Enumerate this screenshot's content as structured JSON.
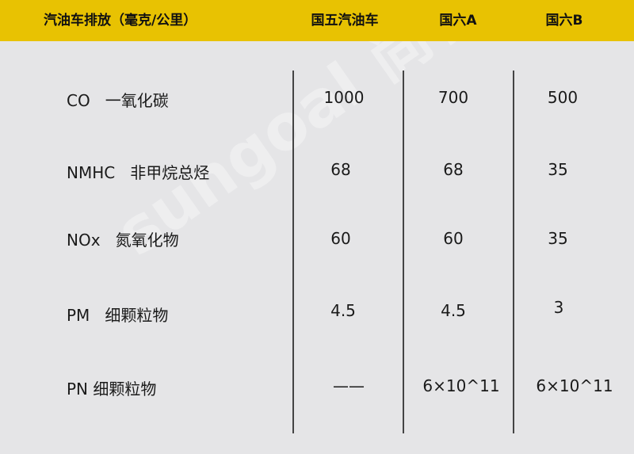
{
  "header": {
    "title": "汽油车排放（毫克/公里）",
    "columns": [
      "国五汽油车",
      "国六A",
      "国六B"
    ]
  },
  "rows": [
    {
      "label": "CO   一氧化碳",
      "values": [
        "1000",
        "700",
        "500"
      ]
    },
    {
      "label": "NMHC   非甲烷总烃",
      "values": [
        "68",
        "68",
        "35"
      ]
    },
    {
      "label": "NOx   氮氧化物",
      "values": [
        "60",
        "60",
        "35"
      ]
    },
    {
      "label": "PM   细颗粒物",
      "values": [
        "4.5",
        "4.5",
        "3"
      ]
    },
    {
      "label": "PN 细颗粒物",
      "values": [
        "——",
        "6×10^11",
        "6×10^11"
      ]
    }
  ],
  "watermark": "sungoal 尚格会展",
  "colors": {
    "header": "#e8c202",
    "background": "#e5e5e7"
  }
}
